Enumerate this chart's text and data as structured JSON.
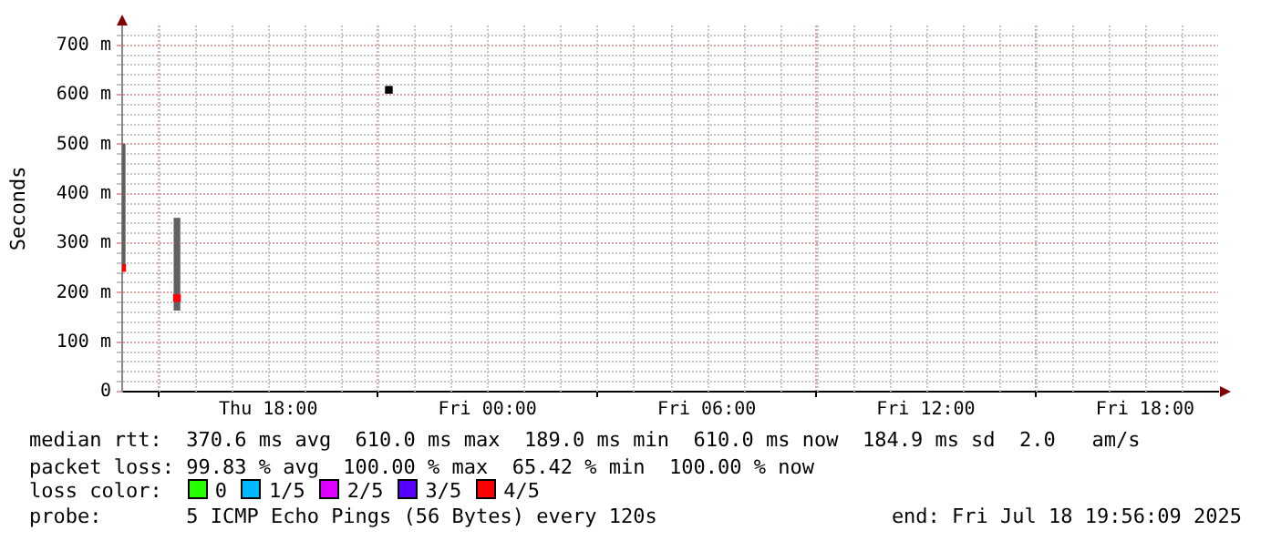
{
  "chart_data": {
    "type": "bar",
    "ylabel": "Seconds",
    "x": [
      "2025-07-17T14:00",
      "2025-07-17T15:30",
      "2025-07-17T21:18"
    ],
    "xlim": [
      "2025-07-17T14:00",
      "2025-07-18T20:00"
    ],
    "xticks": [
      {
        "value": "2025-07-17T18:00",
        "label": "Thu 18:00"
      },
      {
        "value": "2025-07-18T00:00",
        "label": "Fri 00:00"
      },
      {
        "value": "2025-07-18T06:00",
        "label": "Fri 06:00"
      },
      {
        "value": "2025-07-18T12:00",
        "label": "Fri 12:00"
      },
      {
        "value": "2025-07-18T18:00",
        "label": "Fri 18:00"
      }
    ],
    "ylim": [
      0,
      740
    ],
    "yticks": [
      0,
      {
        "value": 20,
        "label": null
      },
      {
        "value": 40,
        "label": null
      },
      {
        "value": 60,
        "label": null
      },
      {
        "value": 80,
        "label": null
      },
      {
        "value": 100,
        "label": "100 m"
      },
      {
        "value": 120,
        "label": null
      },
      {
        "value": 140,
        "label": null
      },
      {
        "value": 160,
        "label": null
      },
      {
        "value": 180,
        "label": null
      },
      {
        "value": 200,
        "label": "200 m"
      },
      {
        "value": 220,
        "label": null
      },
      {
        "value": 240,
        "label": null
      },
      {
        "value": 260,
        "label": null
      },
      {
        "value": 280,
        "label": null
      },
      {
        "value": 300,
        "label": "300 m"
      },
      {
        "value": 320,
        "label": null
      },
      {
        "value": 340,
        "label": null
      },
      {
        "value": 360,
        "label": null
      },
      {
        "value": 380,
        "label": null
      },
      {
        "value": 400,
        "label": "400 m"
      },
      {
        "value": 420,
        "label": null
      },
      {
        "value": 440,
        "label": null
      },
      {
        "value": 460,
        "label": null
      },
      {
        "value": 480,
        "label": null
      },
      {
        "value": 500,
        "label": "500 m"
      },
      {
        "value": 520,
        "label": null
      },
      {
        "value": 540,
        "label": null
      },
      {
        "value": 560,
        "label": null
      },
      {
        "value": 580,
        "label": null
      },
      {
        "value": 600,
        "label": "600 m"
      },
      {
        "value": 620,
        "label": null
      },
      {
        "value": 640,
        "label": null
      },
      {
        "value": 660,
        "label": null
      },
      {
        "value": 680,
        "label": null
      },
      {
        "value": 700,
        "label": "700 m"
      },
      {
        "value": 720,
        "label": null
      }
    ],
    "grid": true,
    "legend": "bottom",
    "legend_title": "loss color:",
    "series": [
      {
        "color": "#606060",
        "base": [
          250,
          165,
          null
        ],
        "values": [
          250,
          185,
          null
        ]
      },
      {
        "type": "scatter",
        "marker": "square",
        "colors": [
          "#ff0000",
          "#ff0000",
          "#000000"
        ],
        "values": [
          250,
          189,
          610
        ]
      },
      {
        "name": "0",
        "color": "#26ff00",
        "values": [
          null,
          null,
          null
        ]
      },
      {
        "name": "1/5",
        "color": "#00b8ff",
        "values": [
          null,
          null,
          null
        ]
      },
      {
        "name": "2/5",
        "color": "#dd00ff",
        "values": [
          null,
          null,
          null
        ]
      },
      {
        "name": "3/5",
        "color": "#5700ff",
        "values": [
          null,
          null,
          null
        ]
      },
      {
        "name": "4/5",
        "color": "#ff0000",
        "values": [
          null,
          null,
          null
        ]
      }
    ],
    "annotations": [
      "median rtt:  370.6 ms avg  610.0 ms max  189.0 ms min  610.0 ms now  184.9 ms sd  2.0   am/s",
      "packet loss: 99.83 % avg  100.00 % max  65.42 % min  100.00 % now",
      "probe:       5 ICMP Echo Pings (56 Bytes) every 120s",
      "end: Fri Jul 18 19:56:09 2025"
    ]
  }
}
